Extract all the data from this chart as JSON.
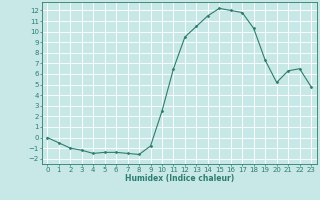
{
  "x": [
    0,
    1,
    2,
    3,
    4,
    5,
    6,
    7,
    8,
    9,
    10,
    11,
    12,
    13,
    14,
    15,
    16,
    17,
    18,
    19,
    20,
    21,
    22,
    23
  ],
  "y": [
    0,
    -0.5,
    -1,
    -1.2,
    -1.5,
    -1.4,
    -1.4,
    -1.5,
    -1.6,
    -0.8,
    2.5,
    6.5,
    9.5,
    10.5,
    11.5,
    12.2,
    12.0,
    11.8,
    10.3,
    7.3,
    5.2,
    6.3,
    6.5,
    4.8
  ],
  "line_color": "#2d7d6e",
  "marker": "D",
  "marker_size": 1.5,
  "bg_color": "#c8e8e8",
  "grid_color": "#ffffff",
  "xlabel": "Humidex (Indice chaleur)",
  "xlim": [
    -0.5,
    23.5
  ],
  "ylim": [
    -2.5,
    12.8
  ],
  "yticks": [
    -2,
    -1,
    0,
    1,
    2,
    3,
    4,
    5,
    6,
    7,
    8,
    9,
    10,
    11,
    12
  ],
  "xticks": [
    0,
    1,
    2,
    3,
    4,
    5,
    6,
    7,
    8,
    9,
    10,
    11,
    12,
    13,
    14,
    15,
    16,
    17,
    18,
    19,
    20,
    21,
    22,
    23
  ],
  "xlabel_fontsize": 5.5,
  "tick_fontsize": 5
}
